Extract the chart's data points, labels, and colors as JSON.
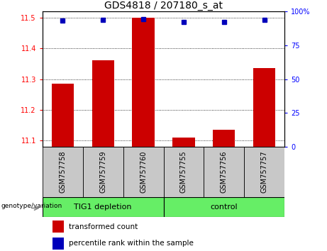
{
  "title": "GDS4818 / 207180_s_at",
  "samples": [
    "GSM757758",
    "GSM757759",
    "GSM757760",
    "GSM757755",
    "GSM757756",
    "GSM757757"
  ],
  "bar_values": [
    11.285,
    11.36,
    11.5,
    11.11,
    11.135,
    11.335
  ],
  "percentile_values": [
    93,
    93.5,
    94,
    92,
    92,
    93.5
  ],
  "bar_color": "#cc0000",
  "dot_color": "#0000bb",
  "ylim_left": [
    11.08,
    11.52
  ],
  "ylim_right": [
    0,
    100
  ],
  "yticks_left": [
    11.1,
    11.2,
    11.3,
    11.4,
    11.5
  ],
  "yticks_right": [
    0,
    25,
    50,
    75,
    100
  ],
  "group1_label": "TIG1 depletion",
  "group2_label": "control",
  "group1_indices": [
    0,
    1,
    2
  ],
  "group2_indices": [
    3,
    4,
    5
  ],
  "group_label_prefix": "genotype/variation",
  "legend_bar_label": "transformed count",
  "legend_dot_label": "percentile rank within the sample",
  "bar_width": 0.55,
  "grid_color": "#000000",
  "bg_plot": "#ffffff",
  "bg_tick_area": "#c8c8c8",
  "group_color": "#66ee66",
  "tick_label_fontsize": 7,
  "title_fontsize": 10,
  "legend_fontsize": 7.5,
  "right_axis_label_100": "100%",
  "right_axis_label_75": "75",
  "right_axis_label_50": "50",
  "right_axis_label_25": "25",
  "right_axis_label_0": "0"
}
